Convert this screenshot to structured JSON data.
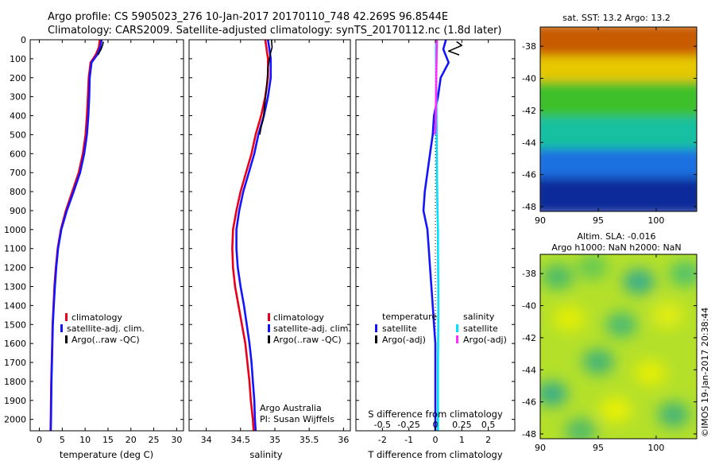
{
  "figure": {
    "title_line1": "Argo profile: CS 5905023_276 10-Jan-2017 20170110_748 42.269S 96.8544E",
    "title_line2": "Climatology: CARS2009. Satellite-adjusted climatology: synTS_20170112.nc (1.8d later)",
    "credit": "©IMOS 19-Jan-2017 20:38:44",
    "colors": {
      "climatology": "#e8001c",
      "satellite_adj": "#1414ff",
      "argo": "#000000",
      "sat_salinity": "#00e0ff",
      "argo_salinity": "#ff2cff"
    }
  },
  "chart_data": [
    {
      "id": "temperature",
      "type": "line",
      "xlabel": "temperature (deg C)",
      "xlim": [
        -2,
        31.5
      ],
      "xticks": [
        0,
        5,
        10,
        15,
        20,
        25,
        30
      ],
      "ylim": [
        2060,
        0
      ],
      "yticks": [
        0,
        100,
        200,
        300,
        400,
        500,
        600,
        700,
        800,
        900,
        1000,
        1100,
        1200,
        1300,
        1400,
        1500,
        1600,
        1700,
        1800,
        1900,
        2000
      ],
      "legend_position": "lower-center",
      "series": [
        {
          "name": "climatology",
          "color": "#e8001c",
          "points": [
            [
              13.2,
              0
            ],
            [
              13.0,
              40
            ],
            [
              12.3,
              80
            ],
            [
              11.2,
              120
            ],
            [
              10.8,
              200
            ],
            [
              10.6,
              300
            ],
            [
              10.4,
              400
            ],
            [
              10.1,
              500
            ],
            [
              9.5,
              600
            ],
            [
              8.6,
              700
            ],
            [
              7.2,
              800
            ],
            [
              5.8,
              900
            ],
            [
              4.7,
              1000
            ],
            [
              4.0,
              1100
            ],
            [
              3.6,
              1200
            ],
            [
              3.3,
              1300
            ],
            [
              3.1,
              1400
            ],
            [
              2.9,
              1500
            ],
            [
              2.8,
              1600
            ],
            [
              2.7,
              1700
            ],
            [
              2.6,
              1800
            ],
            [
              2.55,
              1900
            ],
            [
              2.5,
              2000
            ],
            [
              2.45,
              2060
            ]
          ]
        },
        {
          "name": "satellite-adj. clim.",
          "color": "#1414ff",
          "points": [
            [
              13.6,
              0
            ],
            [
              13.3,
              40
            ],
            [
              12.6,
              80
            ],
            [
              11.4,
              120
            ],
            [
              11.0,
              200
            ],
            [
              10.9,
              300
            ],
            [
              10.7,
              400
            ],
            [
              10.4,
              500
            ],
            [
              9.8,
              600
            ],
            [
              8.9,
              700
            ],
            [
              7.5,
              800
            ],
            [
              6.0,
              900
            ],
            [
              4.8,
              1000
            ],
            [
              4.1,
              1100
            ],
            [
              3.7,
              1200
            ],
            [
              3.4,
              1300
            ],
            [
              3.15,
              1400
            ],
            [
              2.95,
              1500
            ],
            [
              2.85,
              1600
            ],
            [
              2.75,
              1700
            ],
            [
              2.65,
              1800
            ],
            [
              2.6,
              1900
            ],
            [
              2.55,
              2000
            ],
            [
              2.5,
              2060
            ]
          ]
        },
        {
          "name": "Argo(..raw -QC)",
          "color": "#000000",
          "points": [
            [
              14.0,
              10
            ],
            [
              13.8,
              30
            ],
            [
              13.5,
              50
            ],
            [
              12.8,
              80
            ]
          ]
        }
      ]
    },
    {
      "id": "salinity",
      "type": "line",
      "xlabel": "salinity",
      "xlim": [
        33.75,
        36.1
      ],
      "xticks": [
        34,
        34.5,
        35,
        35.5,
        36
      ],
      "xticklabels": [
        "34",
        "34.5",
        "35",
        "35.5",
        "36"
      ],
      "ylim": [
        2060,
        0
      ],
      "legend_position": "lower-right",
      "annotation_line1": "Argo Australia",
      "annotation_line2": "PI: Susan Wijffels",
      "series": [
        {
          "name": "climatology",
          "color": "#e8001c",
          "points": [
            [
              34.86,
              0
            ],
            [
              34.88,
              50
            ],
            [
              34.9,
              100
            ],
            [
              34.9,
              200
            ],
            [
              34.86,
              300
            ],
            [
              34.8,
              400
            ],
            [
              34.72,
              500
            ],
            [
              34.66,
              600
            ],
            [
              34.58,
              700
            ],
            [
              34.5,
              800
            ],
            [
              34.44,
              900
            ],
            [
              34.39,
              1000
            ],
            [
              34.38,
              1100
            ],
            [
              34.39,
              1200
            ],
            [
              34.42,
              1300
            ],
            [
              34.47,
              1400
            ],
            [
              34.52,
              1500
            ],
            [
              34.57,
              1600
            ],
            [
              34.6,
              1700
            ],
            [
              34.63,
              1800
            ],
            [
              34.65,
              1900
            ],
            [
              34.68,
              2000
            ],
            [
              34.69,
              2060
            ]
          ]
        },
        {
          "name": "satellite-adj. clim.",
          "color": "#1414ff",
          "points": [
            [
              34.9,
              0
            ],
            [
              34.92,
              50
            ],
            [
              34.94,
              100
            ],
            [
              34.94,
              200
            ],
            [
              34.9,
              300
            ],
            [
              34.84,
              400
            ],
            [
              34.76,
              500
            ],
            [
              34.7,
              600
            ],
            [
              34.62,
              700
            ],
            [
              34.54,
              800
            ],
            [
              34.48,
              900
            ],
            [
              34.44,
              1000
            ],
            [
              34.44,
              1100
            ],
            [
              34.46,
              1200
            ],
            [
              34.5,
              1300
            ],
            [
              34.55,
              1400
            ],
            [
              34.59,
              1500
            ],
            [
              34.63,
              1600
            ],
            [
              34.66,
              1700
            ],
            [
              34.68,
              1800
            ],
            [
              34.7,
              1900
            ],
            [
              34.71,
              2000
            ],
            [
              34.72,
              2060
            ]
          ]
        },
        {
          "name": "Argo(..raw -QC)",
          "color": "#000000",
          "points": [
            [
              34.95,
              0
            ],
            [
              34.96,
              40
            ],
            [
              34.93,
              80
            ],
            [
              34.9,
              150
            ],
            [
              34.88,
              250
            ],
            [
              34.85,
              350
            ],
            [
              34.83,
              420
            ],
            [
              34.8,
              460
            ],
            [
              34.78,
              500
            ]
          ]
        }
      ]
    },
    {
      "id": "difference",
      "type": "line",
      "xlabel": "T difference from climatology",
      "xlabel_top": "S difference from climatology",
      "xlim": [
        -3,
        3
      ],
      "xticks": [
        -2,
        -1,
        0,
        1,
        2
      ],
      "xticks_top": [
        -0.5,
        -0.25,
        0,
        0.25,
        0.5
      ],
      "ylim": [
        2060,
        0
      ],
      "legend_position": "lower",
      "legend_group1": "temperature",
      "legend_group2": "salinity",
      "series": [
        {
          "name": "satellite",
          "group": "temperature",
          "color": "#1414ff",
          "points": [
            [
              0.4,
              0
            ],
            [
              0.3,
              50
            ],
            [
              0.5,
              120
            ],
            [
              0.2,
              200
            ],
            [
              0.1,
              300
            ],
            [
              -0.05,
              400
            ],
            [
              -0.1,
              500
            ],
            [
              -0.2,
              600
            ],
            [
              -0.3,
              700
            ],
            [
              -0.4,
              800
            ],
            [
              -0.45,
              900
            ],
            [
              -0.3,
              1000
            ],
            [
              -0.25,
              1100
            ],
            [
              -0.2,
              1200
            ],
            [
              -0.15,
              1300
            ],
            [
              -0.1,
              1400
            ],
            [
              -0.05,
              1500
            ],
            [
              0,
              1600
            ],
            [
              0,
              1700
            ],
            [
              0,
              1800
            ],
            [
              0,
              1900
            ],
            [
              0,
              2000
            ],
            [
              0,
              2060
            ]
          ]
        },
        {
          "name": "Argo(-adj)",
          "group": "temperature",
          "color": "#000000",
          "points": [
            [
              0.8,
              10
            ],
            [
              1.0,
              30
            ],
            [
              0.5,
              60
            ],
            [
              0.9,
              80
            ]
          ]
        },
        {
          "name": "satellite",
          "group": "salinity",
          "color": "#00e0ff",
          "points": [
            [
              0.04,
              0
            ],
            [
              0.02,
              50
            ],
            [
              0.03,
              150
            ],
            [
              0.04,
              300
            ],
            [
              0.05,
              500
            ],
            [
              0.06,
              700
            ],
            [
              0.08,
              900
            ],
            [
              0.1,
              1000
            ],
            [
              0.1,
              1100
            ],
            [
              0.11,
              1300
            ],
            [
              0.11,
              1500
            ],
            [
              0.1,
              1700
            ],
            [
              0.1,
              1900
            ],
            [
              0.1,
              2060
            ]
          ]
        },
        {
          "name": "Argo(-adj)",
          "group": "salinity",
          "color": "#ff2cff",
          "points": [
            [
              0.06,
              0
            ],
            [
              0.05,
              60
            ],
            [
              0.04,
              150
            ],
            [
              0.03,
              250
            ],
            [
              0.02,
              350
            ],
            [
              0.01,
              420
            ],
            [
              0.0,
              470
            ],
            [
              -0.02,
              500
            ]
          ]
        }
      ]
    },
    {
      "id": "sst_map",
      "type": "heatmap",
      "title": "sat. SST: 13.2 Argo: 13.2",
      "xlim": [
        90,
        103.5
      ],
      "xticks": [
        90,
        95,
        100
      ],
      "ylim": [
        -48.3,
        -36.8
      ],
      "yticks": [
        -38,
        -40,
        -42,
        -44,
        -46,
        -48
      ],
      "bands": [
        {
          "lat_from": -36.8,
          "lat_to": -38.8,
          "color": "#c85a00"
        },
        {
          "lat_from": -38.8,
          "lat_to": -40.4,
          "color": "#e6c800"
        },
        {
          "lat_from": -40.4,
          "lat_to": -42.6,
          "color": "#3cc02a"
        },
        {
          "lat_from": -42.6,
          "lat_to": -44.6,
          "color": "#18c0a0"
        },
        {
          "lat_from": -44.6,
          "lat_to": -46.4,
          "color": "#1a70e0"
        },
        {
          "lat_from": -46.4,
          "lat_to": -48.3,
          "color": "#0a2a9a"
        }
      ]
    },
    {
      "id": "sla_map",
      "type": "heatmap",
      "title_line1": "Altim. SLA: -0.016",
      "title_line2": "Argo h1000: NaN h2000: NaN",
      "xlim": [
        90,
        103.5
      ],
      "xticks": [
        90,
        95,
        100
      ],
      "ylim": [
        -48.3,
        -36.8
      ],
      "yticks": [
        -38,
        -40,
        -42,
        -44,
        -46,
        -48
      ],
      "base_color": "#b4e02a",
      "blobs": [
        {
          "lon": 91.5,
          "lat": -38.2,
          "color": "#40b870"
        },
        {
          "lon": 94.5,
          "lat": -37.6,
          "color": "#5fc858"
        },
        {
          "lon": 98.5,
          "lat": -38.5,
          "color": "#2fa894"
        },
        {
          "lon": 102.5,
          "lat": -38.0,
          "color": "#48c070"
        },
        {
          "lon": 92.5,
          "lat": -40.8,
          "color": "#e8f000"
        },
        {
          "lon": 97.0,
          "lat": -41.2,
          "color": "#40b878"
        },
        {
          "lon": 101.0,
          "lat": -40.6,
          "color": "#e6ee10"
        },
        {
          "lon": 95.0,
          "lat": -43.5,
          "color": "#36b07e"
        },
        {
          "lon": 99.5,
          "lat": -44.2,
          "color": "#eaf000"
        },
        {
          "lon": 91.0,
          "lat": -45.5,
          "color": "#2ca890"
        },
        {
          "lon": 96.5,
          "lat": -46.5,
          "color": "#eef200"
        },
        {
          "lon": 101.5,
          "lat": -46.8,
          "color": "#38b080"
        },
        {
          "lon": 93.5,
          "lat": -47.8,
          "color": "#48b870"
        }
      ]
    }
  ]
}
